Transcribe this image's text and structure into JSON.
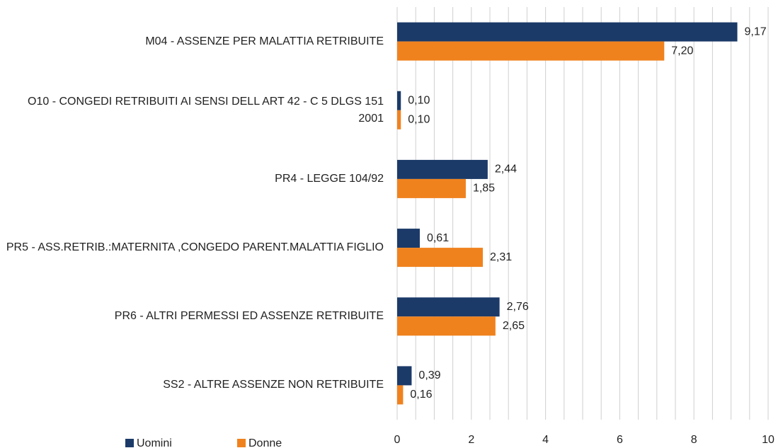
{
  "chart_data": {
    "type": "bar",
    "orientation": "horizontal",
    "categories": [
      "M04 - ASSENZE PER MALATTIA RETRIBUITE",
      "O10 - CONGEDI RETRIBUITI  AI SENSI DELL ART 42 - C 5 DLGS 151 2001",
      "PR4 - LEGGE 104/92",
      "PR5 - ASS.RETRIB.:MATERNITA ,CONGEDO PARENT.MALATTIA FIGLIO",
      "PR6 - ALTRI PERMESSI ED ASSENZE RETRIBUITE",
      "SS2 - ALTRE ASSENZE NON RETRIBUITE"
    ],
    "series": [
      {
        "name": "Uomini",
        "color": "#1b3a68",
        "values": [
          9.17,
          0.1,
          2.44,
          0.61,
          2.76,
          0.39
        ],
        "value_labels": [
          "9,17",
          "0,10",
          "2,44",
          "0,61",
          "2,76",
          "0,39"
        ]
      },
      {
        "name": "Donne",
        "color": "#f0821e",
        "values": [
          7.2,
          0.1,
          1.85,
          2.31,
          2.65,
          0.16
        ],
        "value_labels": [
          "7,20",
          "0,10",
          "1,85",
          "2,31",
          "2,65",
          "0,16"
        ]
      }
    ],
    "xlim": [
      0,
      10
    ],
    "xticks": [
      0,
      2,
      4,
      6,
      8,
      10
    ],
    "xminorticks": [
      0,
      0.5,
      1,
      1.5,
      2,
      2.5,
      3,
      3.5,
      4,
      4.5,
      5,
      5.5,
      6,
      6.5,
      7,
      7.5,
      8,
      8.5,
      9,
      9.5,
      10
    ],
    "grid": true,
    "legend": "bottom-left"
  }
}
